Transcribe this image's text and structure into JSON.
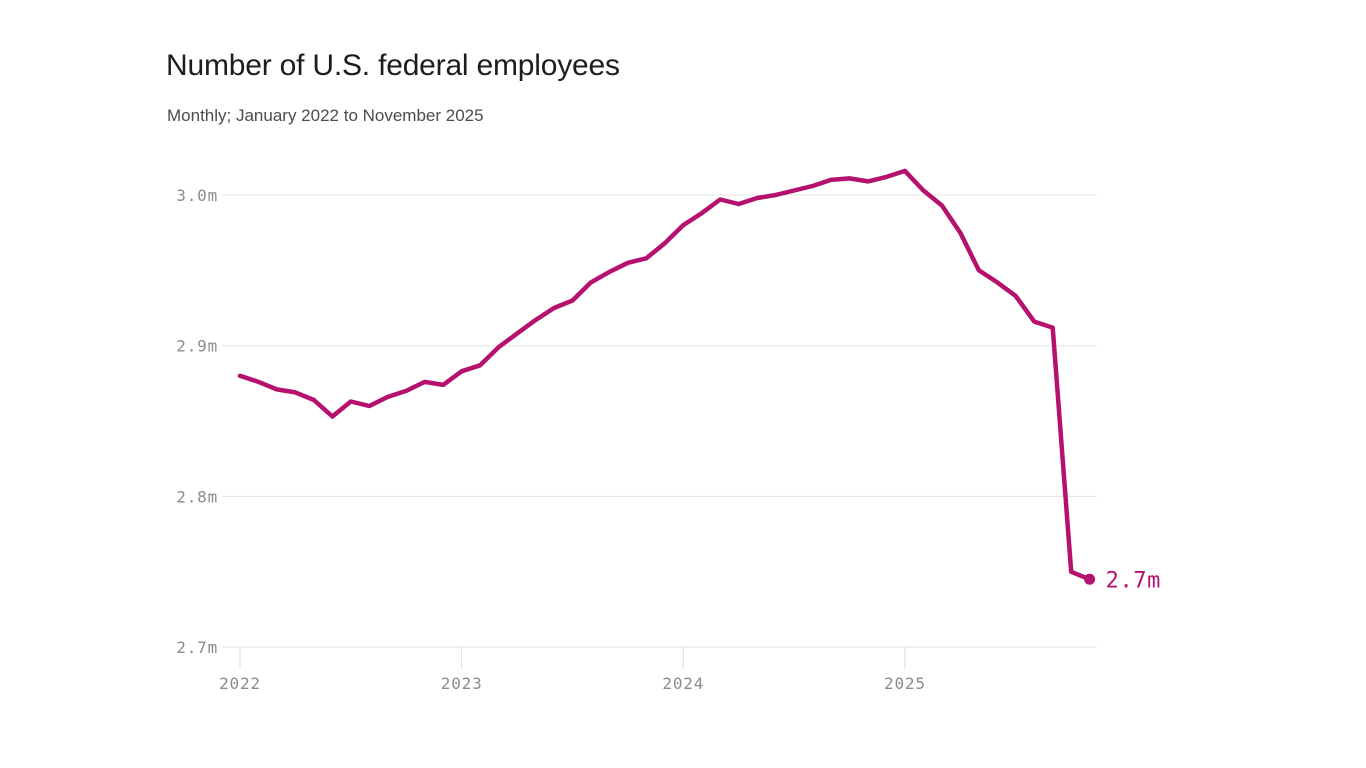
{
  "header": {
    "title": "Number of U.S. federal employees",
    "subtitle": "Monthly; January 2022 to November 2025"
  },
  "chart_data": {
    "type": "line",
    "title": "Number of U.S. federal employees",
    "subtitle": "Monthly; January 2022 to November 2025",
    "series_name": "U.S. federal employees",
    "unit": "millions of employees",
    "x": [
      "Jan 2022",
      "Feb 2022",
      "Mar 2022",
      "Apr 2022",
      "May 2022",
      "Jun 2022",
      "Jul 2022",
      "Aug 2022",
      "Sep 2022",
      "Oct 2022",
      "Nov 2022",
      "Dec 2022",
      "Jan 2023",
      "Feb 2023",
      "Mar 2023",
      "Apr 2023",
      "May 2023",
      "Jun 2023",
      "Jul 2023",
      "Aug 2023",
      "Sep 2023",
      "Oct 2023",
      "Nov 2023",
      "Dec 2023",
      "Jan 2024",
      "Feb 2024",
      "Mar 2024",
      "Apr 2024",
      "May 2024",
      "Jun 2024",
      "Jul 2024",
      "Aug 2024",
      "Sep 2024",
      "Oct 2024",
      "Nov 2024",
      "Dec 2024",
      "Jan 2025",
      "Feb 2025",
      "Mar 2025",
      "Apr 2025",
      "May 2025",
      "Jun 2025",
      "Jul 2025",
      "Aug 2025",
      "Sep 2025",
      "Oct 2025",
      "Nov 2025"
    ],
    "values": [
      2.88,
      2.876,
      2.871,
      2.869,
      2.864,
      2.853,
      2.863,
      2.86,
      2.866,
      2.87,
      2.876,
      2.874,
      2.883,
      2.887,
      2.899,
      2.908,
      2.917,
      2.925,
      2.93,
      2.942,
      2.949,
      2.955,
      2.958,
      2.968,
      2.98,
      2.988,
      2.997,
      2.994,
      2.998,
      3.0,
      3.003,
      3.006,
      3.01,
      3.011,
      3.009,
      3.012,
      3.016,
      3.003,
      2.993,
      2.975,
      2.95,
      2.942,
      2.933,
      2.916,
      2.912,
      2.75,
      2.745
    ],
    "end_point_label": "2.7m",
    "yticks": [
      {
        "value": 3.0,
        "label": "3.0m"
      },
      {
        "value": 2.9,
        "label": "2.9m"
      },
      {
        "value": 2.8,
        "label": "2.8m"
      },
      {
        "value": 2.7,
        "label": "2.7m"
      }
    ],
    "xticks": [
      {
        "month_index": 0,
        "label": "2022"
      },
      {
        "month_index": 12,
        "label": "2023"
      },
      {
        "month_index": 24,
        "label": "2024"
      },
      {
        "month_index": 36,
        "label": "2025"
      }
    ],
    "ylim": [
      2.7,
      3.03
    ],
    "xlabel": "",
    "ylabel": "",
    "grid": true,
    "legend": "none",
    "colors": {
      "line": "#b5116e",
      "gridline": "#e4e4e4",
      "tick_mark": "#dcdcdc",
      "axis_text": "#8b8b8b",
      "title": "#1d1d1d",
      "subtitle": "#4c4c4c",
      "background": "#ffffff"
    }
  }
}
